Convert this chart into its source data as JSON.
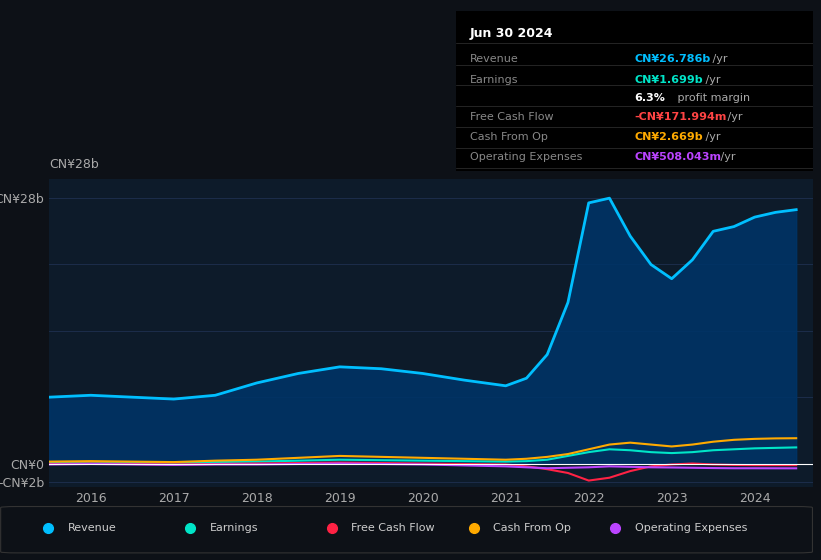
{
  "bg_color": "#0d1117",
  "plot_bg_color": "#0d1b2a",
  "grid_color": "#1e3050",
  "title_box": {
    "date": "Jun 30 2024",
    "rows": [
      {
        "label": "Revenue",
        "value": "CN¥26.786b",
        "suffix": " /yr",
        "value_color": "#00bfff"
      },
      {
        "label": "Earnings",
        "value": "CN¥1.699b",
        "suffix": " /yr",
        "value_color": "#00e5c8"
      },
      {
        "label": "",
        "value": "6.3%",
        "suffix": " profit margin",
        "value_color": "#ffffff"
      },
      {
        "label": "Free Cash Flow",
        "value": "-CN¥171.994m",
        "suffix": " /yr",
        "value_color": "#ff4444"
      },
      {
        "label": "Cash From Op",
        "value": "CN¥2.669b",
        "suffix": " /yr",
        "value_color": "#ffaa00"
      },
      {
        "label": "Operating Expenses",
        "value": "CN¥508.043m",
        "suffix": " /yr",
        "value_color": "#bb44ff"
      }
    ]
  },
  "years": [
    2015.5,
    2016,
    2016.5,
    2017,
    2017.5,
    2018,
    2018.5,
    2019,
    2019.5,
    2020,
    2020.5,
    2021,
    2021.25,
    2021.5,
    2021.75,
    2022,
    2022.25,
    2022.5,
    2022.75,
    2023,
    2023.25,
    2023.5,
    2023.75,
    2024,
    2024.25,
    2024.5
  ],
  "revenue": [
    7.0,
    7.2,
    7.0,
    6.8,
    7.2,
    8.5,
    9.5,
    10.2,
    10.0,
    9.5,
    8.8,
    8.2,
    9.0,
    11.5,
    17.0,
    27.5,
    28.0,
    24.0,
    21.0,
    19.5,
    21.5,
    24.5,
    25.0,
    26.0,
    26.5,
    26.786
  ],
  "earnings": [
    0.1,
    0.15,
    0.12,
    0.1,
    0.15,
    0.2,
    0.3,
    0.4,
    0.35,
    0.3,
    0.25,
    0.2,
    0.25,
    0.4,
    0.8,
    1.2,
    1.5,
    1.4,
    1.2,
    1.1,
    1.2,
    1.4,
    1.5,
    1.6,
    1.65,
    1.699
  ],
  "free_cash_flow": [
    -0.05,
    0.0,
    -0.05,
    -0.1,
    -0.05,
    0.0,
    0.05,
    0.1,
    0.05,
    0.0,
    -0.05,
    -0.1,
    -0.3,
    -0.6,
    -1.0,
    -1.8,
    -1.5,
    -0.8,
    -0.3,
    -0.1,
    0.0,
    -0.1,
    -0.15,
    -0.17,
    -0.17,
    -0.172
  ],
  "cash_from_op": [
    0.2,
    0.25,
    0.2,
    0.15,
    0.3,
    0.4,
    0.6,
    0.8,
    0.7,
    0.6,
    0.5,
    0.4,
    0.5,
    0.7,
    1.0,
    1.5,
    2.0,
    2.2,
    2.0,
    1.8,
    2.0,
    2.3,
    2.5,
    2.6,
    2.65,
    2.669
  ],
  "operating_expenses": [
    -0.1,
    -0.05,
    -0.1,
    -0.15,
    -0.1,
    -0.1,
    -0.05,
    0.0,
    -0.05,
    -0.1,
    -0.2,
    -0.3,
    -0.4,
    -0.5,
    -0.45,
    -0.4,
    -0.3,
    -0.35,
    -0.4,
    -0.42,
    -0.45,
    -0.48,
    -0.5,
    -0.5,
    -0.505,
    -0.508
  ],
  "ylim": [
    -2.5,
    30
  ],
  "yticks": [
    -2,
    0,
    7,
    14,
    21,
    28
  ],
  "ytick_labels": [
    "-CN¥2b",
    "CN¥0",
    "",
    "",
    "",
    "CN¥28b"
  ],
  "xlim": [
    2015.5,
    2024.7
  ],
  "xticks": [
    2016,
    2017,
    2018,
    2019,
    2020,
    2021,
    2022,
    2023,
    2024
  ],
  "revenue_color": "#00bfff",
  "revenue_fill": "#003366",
  "earnings_color": "#00e5c8",
  "fcf_color": "#ff2244",
  "cashop_color": "#ffaa00",
  "opex_color": "#bb44ff",
  "legend": [
    {
      "label": "Revenue",
      "color": "#00bfff"
    },
    {
      "label": "Earnings",
      "color": "#00e5c8"
    },
    {
      "label": "Free Cash Flow",
      "color": "#ff2244"
    },
    {
      "label": "Cash From Op",
      "color": "#ffaa00"
    },
    {
      "label": "Operating Expenses",
      "color": "#bb44ff"
    }
  ]
}
